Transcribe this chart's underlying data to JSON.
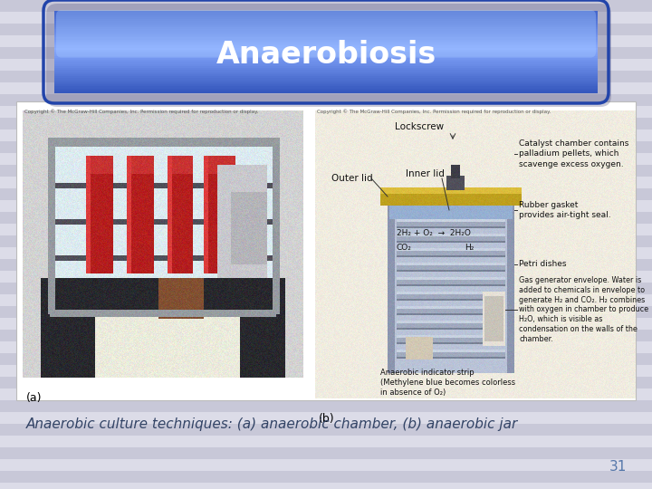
{
  "title": "Anaerobiosis",
  "caption": "Anaerobic culture techniques: (a) anaerobic chamber, (b) anaerobic jar",
  "page_number": "31",
  "bg_color": "#d4d4e0",
  "stripe_color": "#c8c8d8",
  "stripe_light": "#dcdce8",
  "title_color": "#5577dd",
  "title_edge": "#3355aa",
  "title_gloss": "#aabbff",
  "title_text_color": "#ffffff",
  "caption_color": "#334466",
  "page_num_color": "#5577aa",
  "title_fontsize": 24,
  "caption_fontsize": 11,
  "page_num_fontsize": 11,
  "label_a_color": "#111111",
  "label_b_color": "#111111"
}
